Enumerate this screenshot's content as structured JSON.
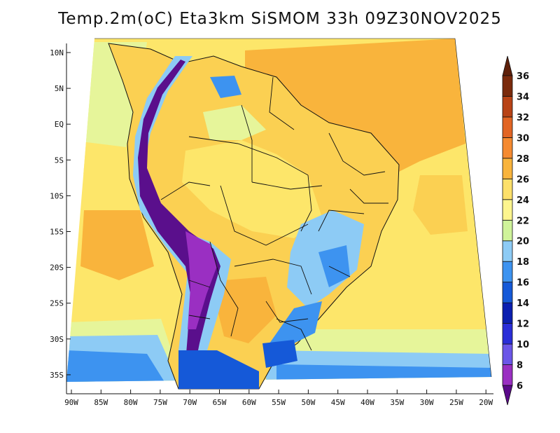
{
  "title": "Temp.2m(oC) Eta3km SiSMOM 33h 09Z30NOV2025",
  "map": {
    "lat_ticks": [
      "10N",
      "5N",
      "EQ",
      "5S",
      "10S",
      "15S",
      "20S",
      "25S",
      "30S",
      "35S"
    ],
    "lon_ticks": [
      "90W",
      "85W",
      "80W",
      "75W",
      "70W",
      "65W",
      "60W",
      "55W",
      "50W",
      "45W",
      "40W",
      "35W",
      "30W",
      "25W",
      "20W"
    ],
    "colors": {
      "ocean_warm": "#f9b43c",
      "ocean_mild": "#fde66a",
      "land_warm": "#fbd052",
      "land_cool": "#e6f59a",
      "andes_cold": "#5a0f8c",
      "south_cold": "#2c7ee8",
      "border": "#111111"
    }
  },
  "colorbar": {
    "labels": [
      "6",
      "8",
      "10",
      "12",
      "14",
      "16",
      "18",
      "20",
      "22",
      "24",
      "26",
      "28",
      "30",
      "32",
      "34",
      "36"
    ],
    "colors": [
      "#5b0a8a",
      "#9a2fc2",
      "#6b56e8",
      "#2a2ed8",
      "#0b1fb0",
      "#1559d8",
      "#3d93f0",
      "#8dcbf5",
      "#cff39a",
      "#fdf58e",
      "#fde06a",
      "#f9b43c",
      "#f58a30",
      "#e26524",
      "#b84316",
      "#7a2a0c",
      "#5e200a"
    ]
  }
}
